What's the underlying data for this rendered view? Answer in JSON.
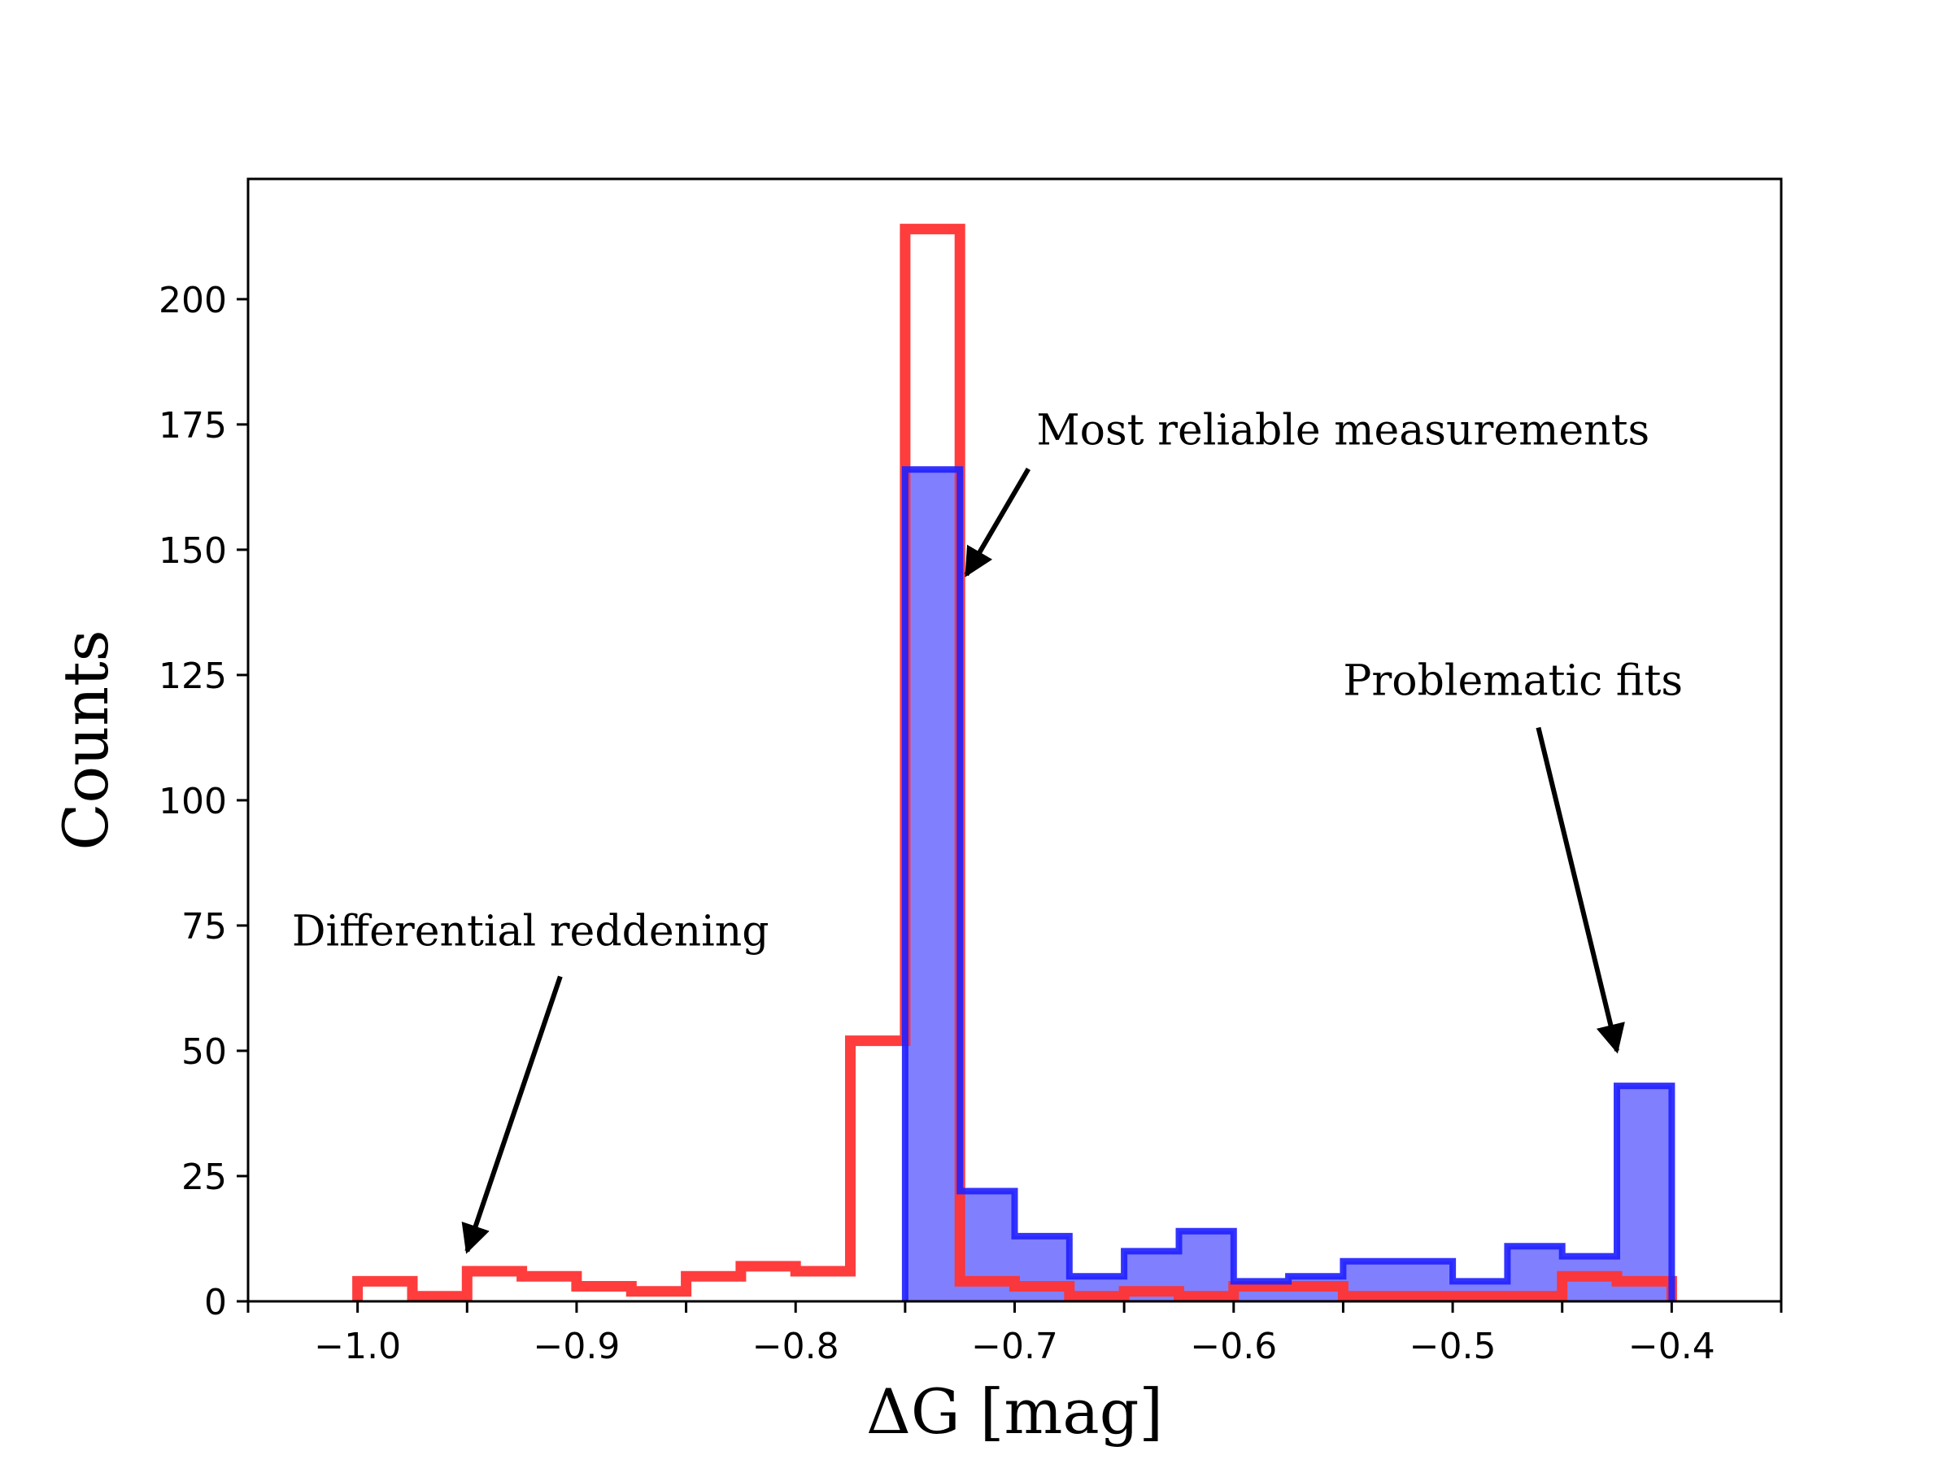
{
  "chart_data": {
    "type": "histogram",
    "title": "",
    "xlabel": "ΔG  [mag]",
    "ylabel": "Counts",
    "xlim": [
      -1.05,
      -0.35
    ],
    "ylim": [
      0,
      224
    ],
    "xticks": [
      -1.0,
      -0.9,
      -0.8,
      -0.7,
      -0.6,
      -0.5,
      -0.4
    ],
    "xtick_labels": [
      "−1.0",
      "−0.9",
      "−0.8",
      "−0.7",
      "−0.6",
      "−0.5",
      "−0.4"
    ],
    "yticks": [
      0,
      25,
      50,
      75,
      100,
      125,
      150,
      175,
      200
    ],
    "ytick_labels": [
      "0",
      "25",
      "50",
      "75",
      "100",
      "125",
      "150",
      "175",
      "200"
    ],
    "grid": false,
    "series": [
      {
        "style": "step",
        "color": "#ff3333",
        "bin_edges": [
          -1.0,
          -0.975,
          -0.95,
          -0.925,
          -0.9,
          -0.875,
          -0.85,
          -0.825,
          -0.8,
          -0.775,
          -0.75,
          -0.725,
          -0.7,
          -0.675,
          -0.65,
          -0.625,
          -0.6,
          -0.575,
          -0.55,
          -0.525,
          -0.5,
          -0.475,
          -0.45,
          -0.425,
          -0.4
        ],
        "counts": [
          4,
          1,
          6,
          5,
          3,
          2,
          5,
          7,
          6,
          52,
          214,
          4,
          3,
          1,
          2,
          1,
          3,
          3,
          1,
          1,
          1,
          1,
          5,
          4
        ]
      },
      {
        "style": "stepfilled-outline",
        "color": "#2222ff",
        "fill": "#8080ff",
        "bin_edges": [
          -0.75,
          -0.725,
          -0.7,
          -0.675,
          -0.65,
          -0.625,
          -0.6,
          -0.575,
          -0.55,
          -0.525,
          -0.5,
          -0.475,
          -0.45,
          -0.425,
          -0.4
        ],
        "counts": [
          166,
          22,
          13,
          5,
          10,
          14,
          4,
          5,
          8,
          8,
          4,
          11,
          9,
          43
        ]
      }
    ],
    "annotations": [
      {
        "text": "Most reliable measurements",
        "xy": [
          -0.722,
          145
        ],
        "xytext": [
          -0.69,
          171
        ]
      },
      {
        "text": "Problematic fits",
        "xy": [
          -0.425,
          50
        ],
        "xytext": [
          -0.55,
          121
        ]
      },
      {
        "text": "Differential reddening",
        "xy": [
          -0.95,
          10
        ],
        "xytext": [
          -1.03,
          71
        ]
      }
    ]
  }
}
